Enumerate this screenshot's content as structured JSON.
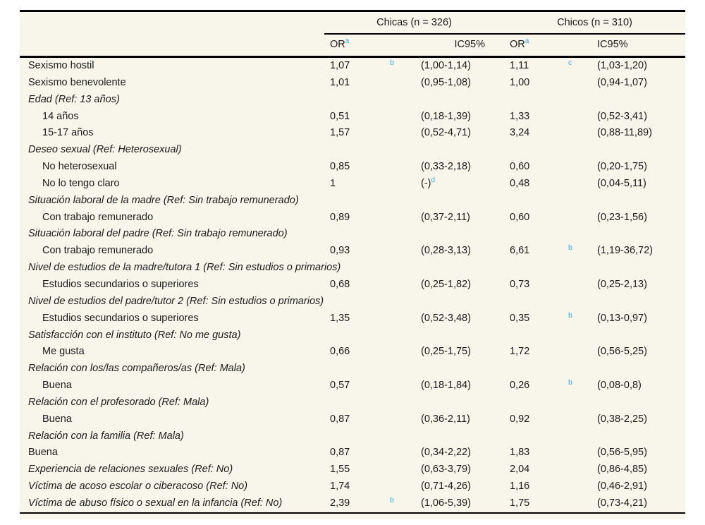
{
  "colors": {
    "page_background": "#ffffff",
    "panel_background": "#f8f5eb",
    "text": "#1b1b1b",
    "rule": "#000000",
    "footnote_blue": "#3fa7dc"
  },
  "table": {
    "groups": [
      {
        "label": "Chicas (n = 326)"
      },
      {
        "label": "Chicos (n = 310)"
      }
    ],
    "subheader": {
      "or_label": "OR",
      "or_sup": "a",
      "ci_label": "IC95%"
    },
    "rows": [
      {
        "label": "Sexismo hostil",
        "style": "normal",
        "or1": "1,07",
        "sig1": "b",
        "ci1": "(1,00-1,14)",
        "or2": "1,11",
        "sig2": "c",
        "ci2": "(1,03-1,20)"
      },
      {
        "label": "Sexismo benevolente",
        "style": "normal",
        "or1": "1,01",
        "ci1": "(0,95-1,08)",
        "or2": "1,00",
        "ci2": "(0,94-1,07)"
      },
      {
        "label": "Edad (Ref: 13 años)",
        "style": "italic"
      },
      {
        "label": "14 años",
        "style": "indent",
        "or1": "0,51",
        "ci1": "(0,18-1,39)",
        "or2": "1,33",
        "ci2": "(0,52-3,41)"
      },
      {
        "label": "15-17 años",
        "style": "indent",
        "or1": "1,57",
        "ci1": "(0,52-4,71)",
        "or2": "3,24",
        "ci2": "(0,88-11,89)"
      },
      {
        "label": "Deseo sexual (Ref: Heterosexual)",
        "style": "italic"
      },
      {
        "label": "No heterosexual",
        "style": "indent",
        "or1": "0,85",
        "ci1": "(0,33-2,18)",
        "or2": "0,60",
        "ci2": "(0,20-1,75)"
      },
      {
        "label": "No lo tengo claro",
        "style": "indent",
        "or1": "1",
        "ci1": "(-)",
        "ci1_sup": "d",
        "or2": "0,48",
        "ci2": "(0,04-5,11)"
      },
      {
        "label": "Situación laboral de la madre (Ref: Sin trabajo remunerado)",
        "style": "italic"
      },
      {
        "label": "Con trabajo remunerado",
        "style": "indent",
        "or1": "0,89",
        "ci1": "(0,37-2,11)",
        "or2": "0,60",
        "ci2": "(0,23-1,56)"
      },
      {
        "label": "Situación laboral del padre (Ref: Sin trabajo remunerado)",
        "style": "italic"
      },
      {
        "label": "Con trabajo remunerado",
        "style": "indent",
        "or1": "0,93",
        "ci1": "(0,28-3,13)",
        "or2": "6,61",
        "sig2": "b",
        "ci2": "(1,19-36,72)"
      },
      {
        "label": "Nivel de estudios de la madre/tutora 1 (Ref: Sin estudios o primarios)",
        "style": "italic"
      },
      {
        "label": "Estudios secundarios o superiores",
        "style": "indent",
        "or1": "0,68",
        "ci1": "(0,25-1,82)",
        "or2": "0,73",
        "ci2": "(0,25-2,13)"
      },
      {
        "label": "Nivel de estudios del padre/tutor 2 (Ref: Sin estudios o primarios)",
        "style": "italic"
      },
      {
        "label": "Estudios secundarios o superiores",
        "style": "indent",
        "or1": "1,35",
        "ci1": "(0,52-3,48)",
        "or2": "0,35",
        "sig2": "b",
        "ci2": "(0,13-0,97)"
      },
      {
        "label": "Satisfacción con el instituto (Ref: No me gusta)",
        "style": "italic"
      },
      {
        "label": "Me gusta",
        "style": "indent",
        "or1": "0,66",
        "ci1": "(0,25-1,75)",
        "or2": "1,72",
        "ci2": "(0,56-5,25)"
      },
      {
        "label": "Relación con los/las compañeros/as (Ref: Mala)",
        "style": "italic"
      },
      {
        "label": "Buena",
        "style": "indent",
        "or1": "0,57",
        "ci1": "(0,18-1,84)",
        "or2": "0,26",
        "sig2": "b",
        "ci2": "(0,08-0,8)"
      },
      {
        "label": "Relación con el profesorado (Ref: Mala)",
        "style": "italic"
      },
      {
        "label": "Buena",
        "style": "indent",
        "or1": "0,87",
        "ci1": "(0,36-2,11)",
        "or2": "0,92",
        "ci2": "(0,38-2,25)"
      },
      {
        "label": "Relación con la familia (Ref: Mala)",
        "style": "italic"
      },
      {
        "label": "Buena",
        "style": "normal",
        "or1": "0,87",
        "ci1": "(0,34-2,22)",
        "or2": "1,83",
        "ci2": "(0,56-5,95)"
      },
      {
        "label": "Experiencia de relaciones sexuales (Ref: No)",
        "style": "italic",
        "or1": "1,55",
        "ci1": "(0,63-3,79)",
        "or2": "2,04",
        "ci2": "(0,86-4,85)"
      },
      {
        "label": "Víctima de acoso escolar o ciberacoso (Ref: No)",
        "style": "italic",
        "or1": "1,74",
        "ci1": "(0,71-4,26)",
        "or2": "1,16",
        "ci2": "(0,46-2,91)"
      },
      {
        "label": "Víctima de abuso físico o sexual en la infancia (Ref: No)",
        "style": "italic",
        "or1": "2,39",
        "sig1": "b",
        "ci1": "(1,06-5,39)",
        "or2": "1,75",
        "ci2": "(0,73-4,21)"
      }
    ]
  }
}
